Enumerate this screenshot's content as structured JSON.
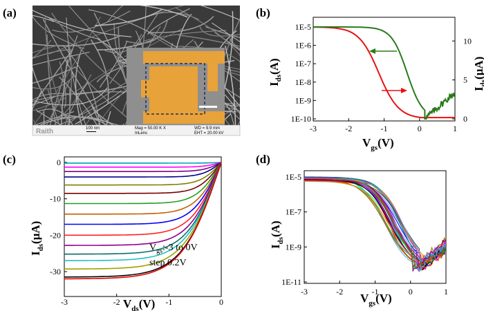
{
  "panels": {
    "a": "(a)",
    "b": "(b)",
    "c": "(c)",
    "d": "(d)"
  },
  "sem": {
    "brand": "Raith",
    "scale": "100 nm",
    "mag": "Mag = 50.00 K X",
    "detector": "InLens",
    "wd": "WD = 9.9 mm",
    "eht": "EHT = 20.00 kV",
    "colors": {
      "nanowire": "#8a8a8a",
      "electrode": "#e8a23a",
      "background": "#3a3a3a"
    }
  },
  "b": {
    "ylabel_left_main": "I",
    "ylabel_left_sub": "ds",
    "ylabel_left_unit": "(A)",
    "ylabel_right_main": "I",
    "ylabel_right_sub": "ds",
    "ylabel_right_unit": "(μA)",
    "xlabel_main": "V",
    "xlabel_sub": "gs",
    "xlabel_unit": "(V)",
    "yticks_left": [
      "1E-5",
      "1E-6",
      "1E-7",
      "1E-8",
      "1E-9",
      "1E-10"
    ],
    "yticks_right": [
      "10",
      "5",
      "0"
    ],
    "xticks": [
      "-3",
      "-2",
      "-1",
      "0",
      "1"
    ]
  },
  "c": {
    "ylabel_main": "I",
    "ylabel_sub": "ds",
    "ylabel_unit": "(μA)",
    "xlabel_main": "V",
    "xlabel_sub": "ds",
    "xlabel_unit": "(V)",
    "yticks": [
      "0",
      "-10",
      "-20",
      "-30"
    ],
    "xticks": [
      "-3",
      "-2",
      "-1",
      "0"
    ],
    "ann_line1_main": "V",
    "ann_line1_sub": "gs",
    "ann_line1_rest": ":-3 to 0V",
    "ann_line2": "step 0.2V"
  },
  "d": {
    "ylabel_main": "I",
    "ylabel_sub": "ds",
    "ylabel_unit": "(A)",
    "xlabel_main": "V",
    "xlabel_sub": "gs",
    "xlabel_unit": "(V)",
    "yticks": [
      "1E-5",
      "1E-7",
      "1E-9",
      "1E-11"
    ],
    "xticks": [
      "-3",
      "-2",
      "-1",
      "0",
      "1"
    ]
  },
  "chart_data": [
    {
      "type": "line",
      "panel": "b",
      "x_range": [
        -3,
        1
      ],
      "y_left_log_range": [
        -10,
        -5
      ],
      "y_right_range": [
        0,
        12
      ],
      "series": [
        {
          "color": "#e81010",
          "axis": "left-log",
          "points": [
            [
              -3,
              1e-05
            ],
            [
              -2.5,
              8e-06
            ],
            [
              -2.0,
              2.5e-06
            ],
            [
              -1.6,
              3e-07
            ],
            [
              -1.2,
              1.5e-08
            ],
            [
              -0.8,
              1e-09
            ],
            [
              -0.4,
              2e-10
            ],
            [
              0,
              1.2e-10
            ],
            [
              1,
              1.2e-10
            ]
          ]
        },
        {
          "color": "#2a7a1a",
          "axis": "right-linear",
          "points": [
            [
              -3,
              11.8
            ],
            [
              -2.0,
              11.6
            ],
            [
              -1.5,
              11.0
            ],
            [
              -1.0,
              9.8
            ],
            [
              -0.6,
              7.5
            ],
            [
              -0.3,
              5.0
            ],
            [
              -0.05,
              2.2
            ],
            [
              0.15,
              0.1
            ],
            [
              0.3,
              0.4
            ],
            [
              0.5,
              1.2
            ],
            [
              0.7,
              2.0
            ],
            [
              0.85,
              2.9
            ],
            [
              1.0,
              3.4
            ]
          ]
        }
      ]
    },
    {
      "type": "line",
      "panel": "c",
      "x_range": [
        -3,
        0
      ],
      "y_range": [
        -32,
        1
      ],
      "colors": [
        "#00a0b0",
        "#ff00ff",
        "#800080",
        "#000090",
        "#808000",
        "#7a0000",
        "#20a020",
        "#c06000",
        "#0000ff",
        "#ff2020",
        "#8b008b",
        "#0b6b6b",
        "#20c0c0",
        "#a0a000",
        "#000000",
        "#e00000"
      ],
      "saturation_values": [
        -0.2,
        -1.3,
        -2.5,
        -4.0,
        -6.2,
        -8.5,
        -11.3,
        -14.2,
        -17.0,
        -20.0,
        -22.8,
        -25.2,
        -27.0,
        -29.3,
        -31.5,
        -32.0
      ]
    },
    {
      "type": "line",
      "panel": "d",
      "x_range": [
        -3,
        1
      ],
      "y_log_range": [
        -11,
        -4.8
      ],
      "n_curves": 30
    }
  ]
}
